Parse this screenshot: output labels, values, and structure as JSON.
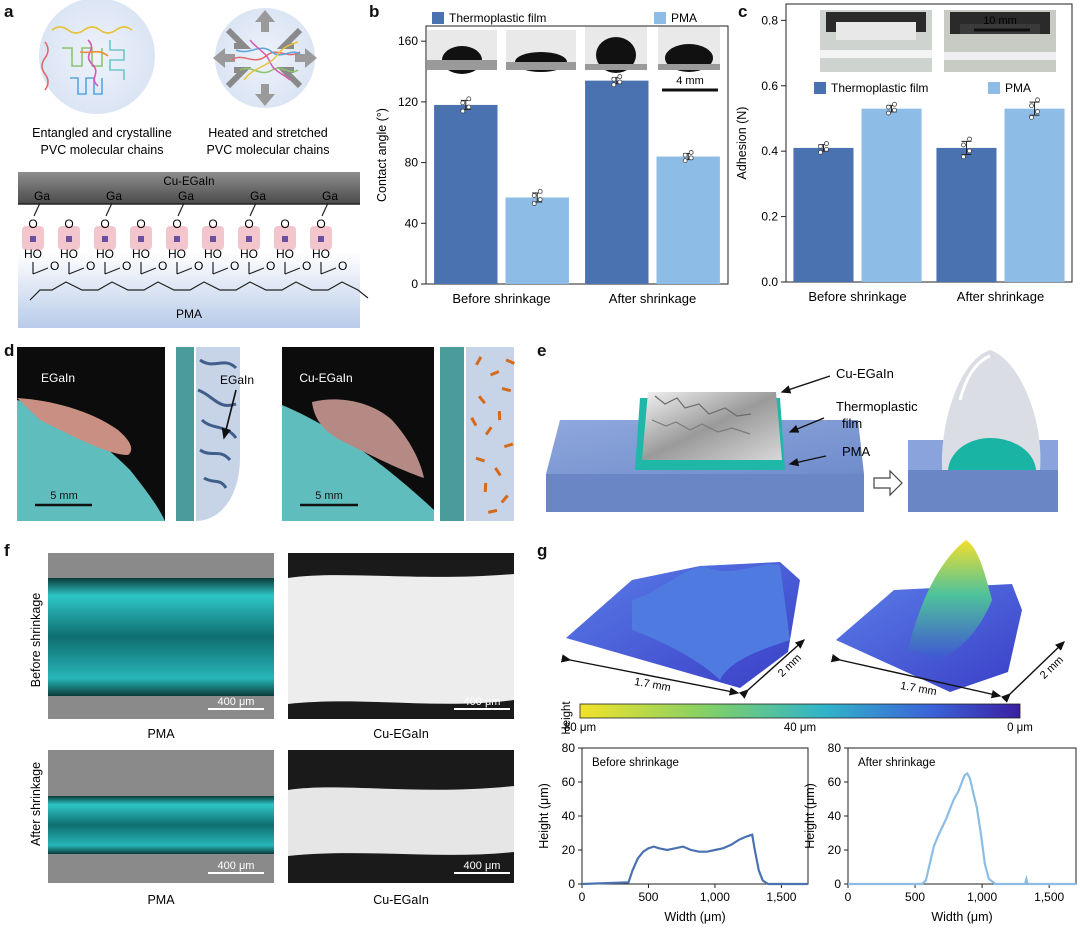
{
  "panels": {
    "a": {
      "letter": "a",
      "cap_left": [
        "Entangled and crystalline",
        "PVC molecular chains"
      ],
      "cap_right": [
        "Heated and stretched",
        "PVC molecular chains"
      ],
      "cu_egain": "Cu-EGaIn",
      "pma": "PMA",
      "ga": "Ga",
      "o": "O",
      "ho": "HO"
    },
    "b": {
      "letter": "b",
      "scalebar": "4 mm"
    },
    "c": {
      "letter": "c",
      "scalebar": "10 mm"
    },
    "d": {
      "letter": "d",
      "egain": "EGaIn",
      "egain_arrow": "EGaIn",
      "cu_egain": "Cu-EGaIn",
      "scale1": "5 mm",
      "scale2": "5 mm"
    },
    "e": {
      "letter": "e",
      "cu_egain": "Cu-EGaIn",
      "film": [
        "Thermoplastic",
        "film"
      ],
      "pma": "PMA"
    },
    "f": {
      "letter": "f",
      "row1": "Before shrinkage",
      "row2": "After shrinkage",
      "scale": "400 μm",
      "cap_pma": "PMA",
      "cap_cu": "Cu-EGaIn"
    },
    "g": {
      "letter": "g",
      "dim_w": "1.7 mm",
      "dim_d": "2 mm",
      "height_label": "Height",
      "cb_ticks": [
        "80 μm",
        "40 μm",
        "0 μm"
      ]
    }
  },
  "colors": {
    "dark_blue": "#4a72b0",
    "light_blue": "#8dbde6",
    "teal": "#6fcfcf",
    "pma_band": "#c9d6ee"
  },
  "chart_data": [
    {
      "id": "b",
      "type": "bar",
      "categories": [
        "Before shrinkage",
        "After shrinkage"
      ],
      "series": [
        {
          "name": "Thermoplastic film",
          "values": [
            118,
            134
          ],
          "err": [
            3,
            2
          ]
        },
        {
          "name": "PMA",
          "values": [
            57,
            84
          ],
          "err": [
            3,
            2
          ]
        }
      ],
      "ylabel": "Contact angle (°)",
      "ylim": [
        0,
        170
      ],
      "yticks": [
        0,
        40,
        80,
        120,
        160
      ]
    },
    {
      "id": "c",
      "type": "bar",
      "categories": [
        "Before shrinkage",
        "After shrinkage"
      ],
      "series": [
        {
          "name": "Thermoplastic film",
          "values": [
            0.41,
            0.41
          ],
          "err": [
            0.01,
            0.02
          ]
        },
        {
          "name": "PMA",
          "values": [
            0.53,
            0.53
          ],
          "err": [
            0.01,
            0.02
          ]
        }
      ],
      "ylabel": "Adhesion (N)",
      "ylim": [
        0,
        0.85
      ],
      "yticks": [
        0,
        0.2,
        0.4,
        0.6,
        0.8
      ]
    },
    {
      "id": "g_before",
      "type": "line",
      "title": "Before shrinkage",
      "xlabel": "Width (μm)",
      "ylabel": "Height (μm)",
      "xlim": [
        0,
        1700
      ],
      "ylim": [
        0,
        80
      ],
      "xticks": [
        0,
        500,
        1000,
        1500
      ],
      "xticklabels": [
        "0",
        "500",
        "1,000",
        "1,500"
      ],
      "yticks": [
        0,
        20,
        40,
        60,
        80
      ],
      "x": [
        0,
        350,
        380,
        420,
        460,
        500,
        540,
        580,
        640,
        700,
        760,
        820,
        880,
        940,
        1000,
        1060,
        1120,
        1180,
        1240,
        1280,
        1300,
        1330,
        1360,
        1400,
        1500,
        1700
      ],
      "y": [
        0,
        1,
        8,
        15,
        19,
        21,
        22,
        21,
        20,
        21,
        22,
        20,
        19,
        19,
        20,
        21,
        23,
        26,
        28,
        29,
        20,
        8,
        2,
        0,
        0,
        0
      ]
    },
    {
      "id": "g_after",
      "type": "line",
      "title": "After shrinkage",
      "xlabel": "Width (μm)",
      "ylabel": "Height (μm)",
      "xlim": [
        0,
        1700
      ],
      "ylim": [
        0,
        80
      ],
      "xticks": [
        0,
        500,
        1000,
        1500
      ],
      "xticklabels": [
        "0",
        "500",
        "1,000",
        "1,500"
      ],
      "yticks": [
        0,
        20,
        40,
        60,
        80
      ],
      "x": [
        0,
        550,
        580,
        610,
        640,
        670,
        700,
        730,
        760,
        790,
        820,
        850,
        870,
        890,
        910,
        930,
        960,
        990,
        1020,
        1050,
        1100,
        1320,
        1330,
        1340,
        1500,
        1700
      ],
      "y": [
        0,
        0,
        2,
        12,
        22,
        28,
        33,
        38,
        44,
        50,
        54,
        60,
        64,
        65,
        62,
        55,
        45,
        30,
        12,
        3,
        0,
        0,
        3,
        0,
        0,
        0
      ]
    }
  ]
}
